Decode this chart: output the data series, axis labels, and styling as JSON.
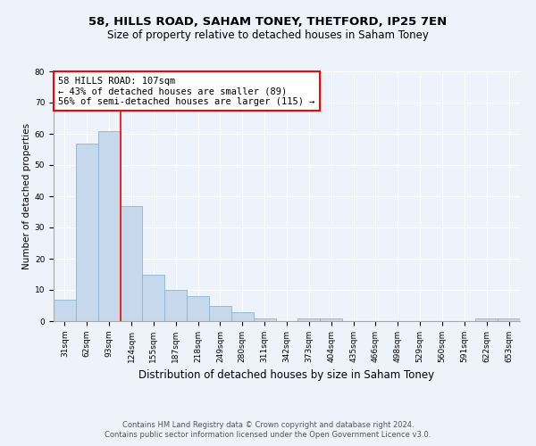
{
  "title1": "58, HILLS ROAD, SAHAM TONEY, THETFORD, IP25 7EN",
  "title2": "Size of property relative to detached houses in Saham Toney",
  "xlabel": "Distribution of detached houses by size in Saham Toney",
  "ylabel": "Number of detached properties",
  "footer1": "Contains HM Land Registry data © Crown copyright and database right 2024.",
  "footer2": "Contains public sector information licensed under the Open Government Licence v3.0.",
  "bins": [
    "31sqm",
    "62sqm",
    "93sqm",
    "124sqm",
    "155sqm",
    "187sqm",
    "218sqm",
    "249sqm",
    "280sqm",
    "311sqm",
    "342sqm",
    "373sqm",
    "404sqm",
    "435sqm",
    "466sqm",
    "498sqm",
    "529sqm",
    "560sqm",
    "591sqm",
    "622sqm",
    "653sqm"
  ],
  "values": [
    7,
    57,
    61,
    37,
    15,
    10,
    8,
    5,
    3,
    1,
    0,
    1,
    1,
    0,
    0,
    0,
    0,
    0,
    0,
    1,
    1
  ],
  "bar_color": "#c6d9ec",
  "bar_edge_color": "#8ab4d4",
  "vline_x_index": 2.5,
  "vline_color": "red",
  "annotation_line1": "58 HILLS ROAD: 107sqm",
  "annotation_line2": "← 43% of detached houses are smaller (89)",
  "annotation_line3": "56% of semi-detached houses are larger (115) →",
  "annotation_box_color": "white",
  "annotation_box_edge": "red",
  "ylim": [
    0,
    80
  ],
  "yticks": [
    0,
    10,
    20,
    30,
    40,
    50,
    60,
    70,
    80
  ],
  "background_color": "#eef2fb",
  "grid_color": "white",
  "title1_fontsize": 9.5,
  "title2_fontsize": 8.5,
  "xlabel_fontsize": 8.5,
  "ylabel_fontsize": 7.5,
  "tick_fontsize": 6.5,
  "footer_fontsize": 6.0,
  "annotation_fontsize": 7.5
}
